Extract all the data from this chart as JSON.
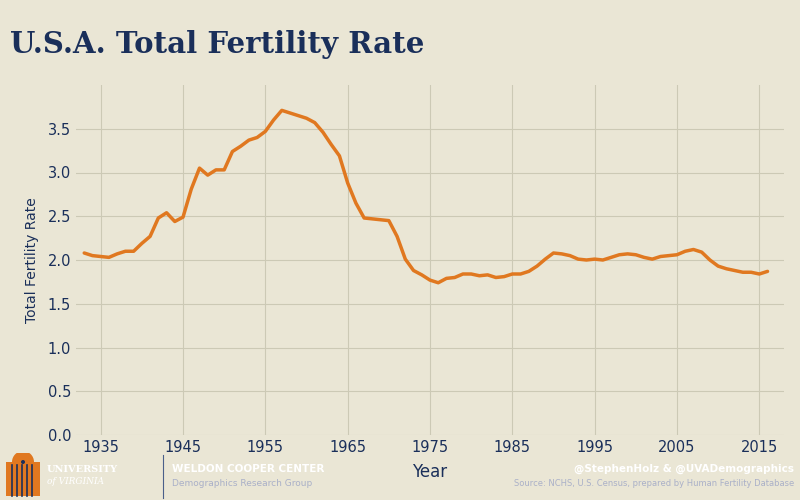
{
  "title": "U.S.A. Total Fertility Rate",
  "xlabel": "Year",
  "ylabel": "Total Fertility Rate",
  "background_color": "#eae6d5",
  "plot_bg_color": "#eae6d5",
  "line_color": "#e07820",
  "line_width": 2.5,
  "title_color": "#1a2f5a",
  "axis_label_color": "#1a2f5a",
  "tick_label_color": "#1a2f5a",
  "grid_color": "#ccc9b5",
  "footer_bg_color": "#1a2f5a",
  "footer_orange_color": "#e07820",
  "xlim": [
    1932,
    2018
  ],
  "ylim": [
    0.0,
    4.0
  ],
  "xticks": [
    1935,
    1945,
    1955,
    1965,
    1975,
    1985,
    1995,
    2005,
    2015
  ],
  "yticks": [
    0.0,
    0.5,
    1.0,
    1.5,
    2.0,
    2.5,
    3.0,
    3.5
  ],
  "years": [
    1933,
    1934,
    1935,
    1936,
    1937,
    1938,
    1939,
    1940,
    1941,
    1942,
    1943,
    1944,
    1945,
    1946,
    1947,
    1948,
    1949,
    1950,
    1951,
    1952,
    1953,
    1954,
    1955,
    1956,
    1957,
    1958,
    1959,
    1960,
    1961,
    1962,
    1963,
    1964,
    1965,
    1966,
    1967,
    1968,
    1969,
    1970,
    1971,
    1972,
    1973,
    1974,
    1975,
    1976,
    1977,
    1978,
    1979,
    1980,
    1981,
    1982,
    1983,
    1984,
    1985,
    1986,
    1987,
    1988,
    1989,
    1990,
    1991,
    1992,
    1993,
    1994,
    1995,
    1996,
    1997,
    1998,
    1999,
    2000,
    2001,
    2002,
    2003,
    2004,
    2005,
    2006,
    2007,
    2008,
    2009,
    2010,
    2011,
    2012,
    2013,
    2014,
    2015,
    2016
  ],
  "values": [
    2.08,
    2.05,
    2.04,
    2.03,
    2.07,
    2.1,
    2.1,
    2.19,
    2.27,
    2.48,
    2.54,
    2.44,
    2.49,
    2.81,
    3.05,
    2.97,
    3.03,
    3.03,
    3.24,
    3.3,
    3.37,
    3.4,
    3.47,
    3.6,
    3.71,
    3.68,
    3.65,
    3.62,
    3.57,
    3.46,
    3.32,
    3.19,
    2.88,
    2.65,
    2.48,
    2.47,
    2.46,
    2.45,
    2.27,
    2.01,
    1.88,
    1.83,
    1.77,
    1.74,
    1.79,
    1.8,
    1.84,
    1.84,
    1.82,
    1.83,
    1.8,
    1.81,
    1.84,
    1.84,
    1.87,
    1.93,
    2.01,
    2.08,
    2.07,
    2.05,
    2.01,
    2.0,
    2.01,
    2.0,
    2.03,
    2.06,
    2.07,
    2.06,
    2.03,
    2.01,
    2.04,
    2.05,
    2.06,
    2.1,
    2.12,
    2.09,
    2.0,
    1.93,
    1.9,
    1.88,
    1.86,
    1.86,
    1.84,
    1.87
  ],
  "footer_uva_line1": "UNIVERSITY",
  "footer_uva_line2": "of VIRGINIA",
  "footer_center_line1": "WELDON COOPER CENTER",
  "footer_center_line2": "Demographics Research Group",
  "footer_right_line1": "@StephenHolz & @UVADemographics",
  "footer_right_line2": "Source: NCHS, U.S. Census, prepared by Human Fertility Database"
}
